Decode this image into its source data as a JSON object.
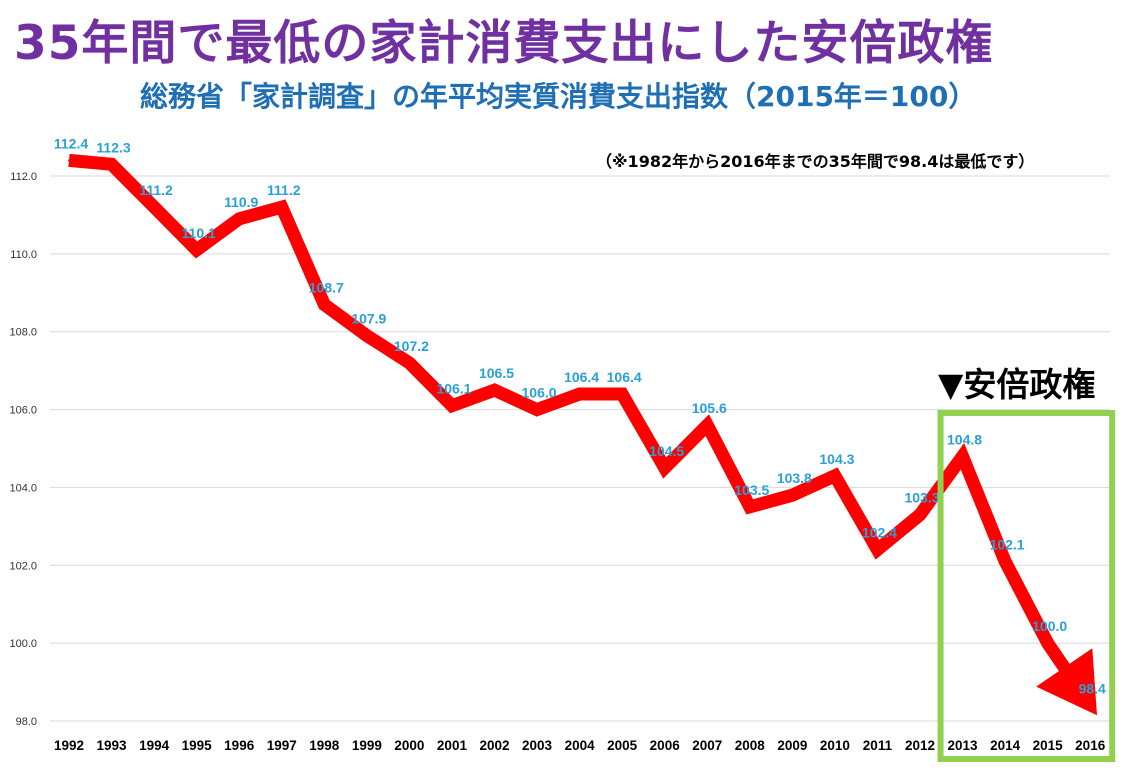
{
  "header": {
    "title": "35年間で最低の家計消費支出にした安倍政権",
    "subtitle": "総務省「家計調査」の年平均実質消費支出指数（2015年＝100）",
    "note": "（※1982年から2016年までの35年間で98.4は最低です）",
    "abe_label": "▼安倍政権"
  },
  "colors": {
    "title": "#7030a0",
    "subtitle": "#1f6fb5",
    "line": "#ff0000",
    "data_label": "#2aa0d8",
    "abe_box": "#92d050",
    "grid": "#d9d9d9"
  },
  "chart_data": {
    "type": "line",
    "title": "35年間で最低の家計消費支出にした安倍政権",
    "subtitle": "総務省「家計調査」の年平均実質消費支出指数（2015年＝100）",
    "xlabel": "",
    "ylabel": "",
    "categories": [
      "1992",
      "1993",
      "1994",
      "1995",
      "1996",
      "1997",
      "1998",
      "1999",
      "2000",
      "2001",
      "2002",
      "2003",
      "2004",
      "2005",
      "2006",
      "2007",
      "2008",
      "2009",
      "2010",
      "2011",
      "2012",
      "2013",
      "2014",
      "2015",
      "2016"
    ],
    "values": [
      112.4,
      112.3,
      111.2,
      110.1,
      110.9,
      111.2,
      108.7,
      107.9,
      107.2,
      106.1,
      106.5,
      106.0,
      106.4,
      106.4,
      104.5,
      105.6,
      103.5,
      103.8,
      104.3,
      102.4,
      103.3,
      104.8,
      102.1,
      100.0,
      98.4
    ],
    "data_labels": [
      "112.4",
      "112.3",
      "111.2",
      "110.1",
      "110.9",
      "111.2",
      "108.7",
      "107.9",
      "107.2",
      "106.1",
      "106.5",
      "106.0",
      "106.4",
      "106.4",
      "104.5",
      "105.6",
      "103.5",
      "103.8",
      "104.3",
      "102.4",
      "103.3",
      "104.8",
      "102.1",
      "100.0",
      "98.4"
    ],
    "ylim": [
      98,
      112
    ],
    "yticks": [
      "98.0",
      "100.0",
      "102.0",
      "104.0",
      "106.0",
      "108.0",
      "110.0",
      "112.0"
    ],
    "grid": true,
    "line_ends_with_arrow": true,
    "highlight": {
      "label": "▼安倍政権",
      "from": "2013",
      "to": "2016"
    }
  }
}
